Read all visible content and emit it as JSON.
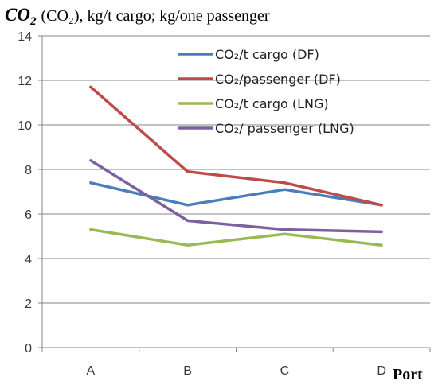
{
  "chart_data": {
    "type": "line",
    "title_main": "CO",
    "title_sub": "2",
    "title_rest": "(CO₂),  kg/t cargo; kg/one passenger",
    "xlabel": "Port",
    "categories": [
      "A",
      "B",
      "C",
      "D"
    ],
    "ylim": [
      0,
      14
    ],
    "yticks": [
      0,
      2,
      4,
      6,
      8,
      10,
      12,
      14
    ],
    "grid": true,
    "legend_placement": "top-right",
    "series": [
      {
        "name": "CO₂/t cargo (DF)",
        "color": "#4a7ebb",
        "values": [
          7.4,
          6.4,
          7.1,
          6.4
        ]
      },
      {
        "name": "CO₂/passenger (DF)",
        "color": "#be4b48",
        "values": [
          11.7,
          7.9,
          7.4,
          6.4
        ]
      },
      {
        "name": "CO₂/t cargo (LNG)",
        "color": "#98b954",
        "values": [
          5.3,
          4.6,
          5.1,
          4.6
        ]
      },
      {
        "name": "CO₂/ passenger (LNG)",
        "color": "#7d60a0",
        "values": [
          8.4,
          5.7,
          5.3,
          5.2
        ]
      }
    ]
  }
}
